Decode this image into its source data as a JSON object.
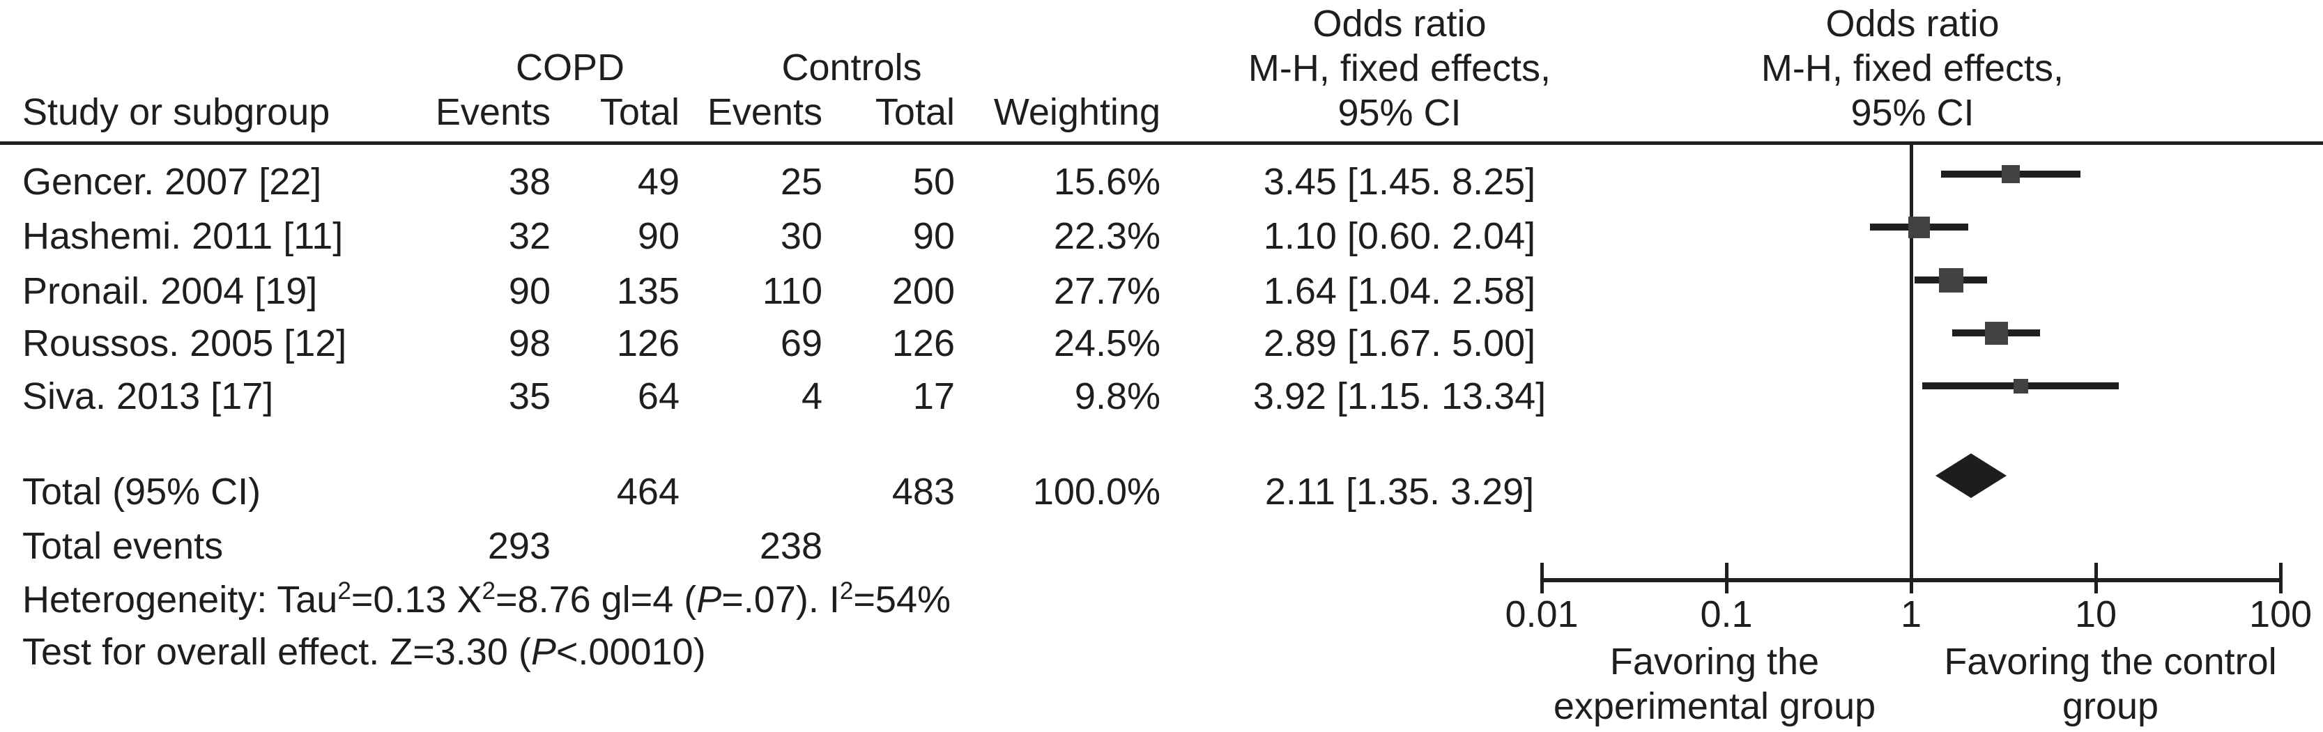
{
  "header": {
    "study_or_subgroup": "Study or subgroup",
    "copd": "COPD",
    "controls": "Controls",
    "copd_events": "Events",
    "copd_total": "Total",
    "controls_events": "Events",
    "controls_total": "Total",
    "weighting": "Weighting",
    "or_text_col": {
      "line1": "Odds ratio",
      "line2": "M-H, fixed effects,",
      "line3": "95% CI"
    },
    "or_plot_col": {
      "line1": "Odds ratio",
      "line2": "M-H, fixed effects,",
      "line3": "95% CI"
    }
  },
  "totals": {
    "label": "Total (95% CI)",
    "copd_total": "464",
    "control_total": "483",
    "weighting": "100.0%",
    "or_ci_text": "2.11 [1.35. 3.29]",
    "events_label": "Total events",
    "copd_events": "293",
    "control_events": "238"
  },
  "footnotes": {
    "heterogeneity": [
      {
        "text": "Heterogeneity: Tau"
      },
      {
        "text": "2",
        "style": "sup"
      },
      {
        "text": "=0.13 X"
      },
      {
        "text": "2",
        "style": "sup"
      },
      {
        "text": "=8.76 gl=4 ("
      },
      {
        "text": "P",
        "style": "italic"
      },
      {
        "text": "=.07). I"
      },
      {
        "text": "2",
        "style": "sup"
      },
      {
        "text": "=54%"
      }
    ],
    "overall_effect": [
      {
        "text": "Test for overall effect. Z=3.30 ("
      },
      {
        "text": "P",
        "style": "italic"
      },
      {
        "text": "<.00010)"
      }
    ]
  },
  "axis_area": {
    "favoring_left": {
      "line1": "Favoring the",
      "line2": "experimental group"
    },
    "favoring_right": {
      "line1": "Favoring the control",
      "line2": "group"
    }
  },
  "chart_data": {
    "type": "forest",
    "x_scale": "log10",
    "xlim": [
      0.01,
      100
    ],
    "reference_line": 1,
    "x_ticks": [
      {
        "value": 0.01,
        "label": "0.01"
      },
      {
        "value": 0.1,
        "label": "0.1"
      },
      {
        "value": 1,
        "label": "1"
      },
      {
        "value": 10,
        "label": "10"
      },
      {
        "value": 100,
        "label": "100"
      }
    ],
    "studies": [
      {
        "label": "Gencer. 2007 [22]",
        "copd_events": "38",
        "copd_total": "49",
        "control_events": "25",
        "control_total": "50",
        "weighting": "15.6%",
        "weight_value": 15.6,
        "or": 3.45,
        "ci_low": 1.45,
        "ci_high": 8.25,
        "or_ci_text": "3.45 [1.45. 8.25]"
      },
      {
        "label": "Hashemi. 2011 [11]",
        "copd_events": "32",
        "copd_total": "90",
        "control_events": "30",
        "control_total": "90",
        "weighting": "22.3%",
        "weight_value": 22.3,
        "or": 1.1,
        "ci_low": 0.6,
        "ci_high": 2.04,
        "or_ci_text": "1.10 [0.60. 2.04]"
      },
      {
        "label": "Pronail. 2004 [19]",
        "copd_events": "90",
        "copd_total": "135",
        "control_events": "110",
        "control_total": "200",
        "weighting": "27.7%",
        "weight_value": 27.7,
        "or": 1.64,
        "ci_low": 1.04,
        "ci_high": 2.58,
        "or_ci_text": "1.64 [1.04. 2.58]"
      },
      {
        "label": "Roussos. 2005 [12]",
        "copd_events": "98",
        "copd_total": "126",
        "control_events": "69",
        "control_total": "126",
        "weighting": "24.5%",
        "weight_value": 24.5,
        "or": 2.89,
        "ci_low": 1.67,
        "ci_high": 5.0,
        "or_ci_text": "2.89 [1.67. 5.00]"
      },
      {
        "label": "Siva. 2013 [17]",
        "copd_events": "35",
        "copd_total": "64",
        "control_events": "4",
        "control_total": "17",
        "weighting": "9.8%",
        "weight_value": 9.8,
        "or": 3.92,
        "ci_low": 1.15,
        "ci_high": 13.34,
        "or_ci_text": "3.92 [1.15. 13.34]"
      }
    ],
    "summary": {
      "or": 2.11,
      "ci_low": 1.35,
      "ci_high": 3.29
    },
    "colors": {
      "text": "#1e1e1e",
      "line": "#1f1f1f",
      "square": "#424242",
      "diamond": "#1d1d1d"
    }
  }
}
